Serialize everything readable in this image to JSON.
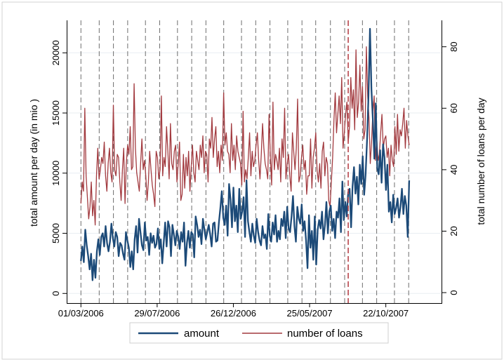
{
  "chart_data": {
    "type": "line",
    "title": "",
    "xlabel": "",
    "ylabel_left": "total amount per day (in mio  )",
    "ylabel_right": "total number of loans per day",
    "x_range": [
      "2006-02-01",
      "2008-02-10"
    ],
    "x_ticks": [
      "01/03/2006",
      "29/07/2006",
      "26/12/2006",
      "25/05/2007",
      "22/10/2007"
    ],
    "ylim_left": [
      -800,
      22700
    ],
    "yticks_left": [
      0,
      5000,
      10000,
      15000,
      20000
    ],
    "ylim_right": [
      -3.4,
      88.6
    ],
    "yticks_right": [
      0,
      20,
      40,
      60,
      80
    ],
    "grid": "horizontal",
    "legend_position": "bottom",
    "legend": [
      "amount",
      "number of loans"
    ],
    "colors": {
      "amount": "#1c4a78",
      "number of loans": "#a23a3f",
      "event_lines": "#6e6e6e",
      "highlight_line": "#b8454b",
      "grid": "#e8eef2"
    },
    "event_dates": [
      "2006-03-01",
      "2006-04-06",
      "2006-05-04",
      "2006-06-01",
      "2006-07-06",
      "2006-08-03",
      "2006-09-07",
      "2006-10-05",
      "2006-11-02",
      "2006-12-07",
      "2007-01-11",
      "2007-02-08",
      "2007-03-08",
      "2007-04-12",
      "2007-05-10",
      "2007-06-06",
      "2007-07-05",
      "2007-08-02",
      "2007-09-06",
      "2007-10-04",
      "2007-11-08",
      "2007-12-06"
    ],
    "highlight_date": "2007-08-09",
    "series": [
      {
        "name": "amount",
        "axis": "left",
        "x_start": "2006-03-01",
        "x_end": "2007-12-07",
        "values": [
          2700,
          3900,
          2600,
          5300,
          4000,
          3100,
          2000,
          3300,
          1100,
          2800,
          1300,
          3500,
          4500,
          3200,
          4700,
          5000,
          3900,
          5600,
          4200,
          3500,
          4300,
          5800,
          4600,
          3900,
          5100,
          4700,
          3100,
          4200,
          4000,
          3300,
          2800,
          5100,
          4400,
          3800,
          2200,
          3500,
          2000,
          4500,
          5600,
          3400,
          6200,
          5100,
          4000,
          3600,
          5900,
          4400,
          4700,
          3200,
          5000,
          4200,
          4800,
          3800,
          4100,
          5400,
          3700,
          4500,
          2500,
          4200,
          5900,
          3900,
          6000,
          5500,
          3100,
          5700,
          4900,
          4000,
          5200,
          4700,
          3700,
          5100,
          4300,
          5900,
          2300,
          4200,
          5200,
          3800,
          5100,
          4900,
          3000,
          6400,
          5700,
          4700,
          5300,
          4100,
          6200,
          5300,
          4500,
          5100,
          5700,
          4900,
          3900,
          5800,
          5900,
          4300,
          4400,
          5900,
          7100,
          8500,
          6300,
          5700,
          7300,
          4800,
          9100,
          7800,
          5500,
          8800,
          6000,
          7300,
          5100,
          8700,
          6200,
          6800,
          8000,
          4700,
          9400,
          6000,
          5100,
          4300,
          5800,
          4800,
          4200,
          6200,
          5100,
          4400,
          4000,
          5600,
          4600,
          4900,
          3700,
          6600,
          4800,
          4300,
          5900,
          4900,
          6500,
          4300,
          5200,
          4500,
          6200,
          5600,
          6800,
          4600,
          7200,
          5400,
          5100,
          6400,
          8100,
          5600,
          4300,
          7200,
          6200,
          5800,
          7400,
          5200,
          6000,
          4400,
          2100,
          6500,
          3800,
          5200,
          2800,
          6400,
          2400,
          5300,
          6100,
          5400,
          6800,
          4500,
          5700,
          7600,
          5000,
          6800,
          7300,
          5200,
          6200,
          4600,
          6800,
          6300,
          7900,
          5100,
          9300,
          6100,
          7600,
          6400,
          8400,
          8700,
          5500,
          8900,
          10500,
          8300,
          9700,
          7400,
          10700,
          9100,
          11400,
          8200,
          9900,
          12800,
          16500,
          22000,
          17000,
          14400,
          11200,
          15800,
          10400,
          9900,
          11900,
          9200,
          12400,
          11300,
          8600,
          10700,
          6800,
          7600,
          5900,
          8200,
          6600,
          7100,
          7900,
          6300,
          7200,
          8700,
          6600,
          8100,
          7300,
          4700,
          9400
        ]
      },
      {
        "name": "number of loans",
        "axis": "right",
        "x_start": "2006-03-01",
        "x_end": "2007-12-07",
        "values": [
          29,
          36,
          33,
          60,
          38,
          31,
          24,
          28,
          36,
          25,
          30,
          22,
          38,
          47,
          37,
          40,
          44,
          42,
          49,
          38,
          33,
          42,
          47,
          39,
          36,
          61,
          40,
          38,
          45,
          44,
          36,
          30,
          40,
          47,
          29,
          42,
          48,
          45,
          54,
          40,
          41,
          68,
          47,
          39,
          36,
          33,
          42,
          50,
          40,
          43,
          38,
          30,
          36,
          46,
          40,
          35,
          32,
          28,
          46,
          44,
          37,
          40,
          64,
          38,
          44,
          41,
          54,
          46,
          37,
          55,
          42,
          40,
          46,
          48,
          36,
          42,
          49,
          30,
          32,
          45,
          34,
          44,
          38,
          46,
          33,
          41,
          48,
          39,
          36,
          46,
          43,
          40,
          48,
          44,
          51,
          39,
          46,
          45,
          36,
          50,
          47,
          57,
          44,
          50,
          54,
          41,
          46,
          39,
          48,
          43,
          65,
          48,
          52,
          46,
          45,
          39,
          55,
          43,
          48,
          40,
          51,
          46,
          44,
          42,
          35,
          59,
          36,
          40,
          37,
          44,
          52,
          38,
          46,
          41,
          43,
          48,
          52,
          43,
          37,
          45,
          55,
          47,
          42,
          40,
          37,
          58,
          44,
          35,
          62,
          40,
          45,
          43,
          40,
          47,
          36,
          50,
          44,
          60,
          37,
          42,
          45,
          38,
          33,
          52,
          46,
          40,
          47,
          63,
          36,
          38,
          44,
          48,
          40,
          43,
          32,
          38,
          38,
          50,
          34,
          44,
          47,
          52,
          40,
          36,
          42,
          34,
          46,
          49,
          38,
          44,
          42,
          30,
          28,
          36,
          44,
          56,
          65,
          52,
          58,
          64,
          55,
          70,
          47,
          52,
          58,
          62,
          49,
          54,
          70,
          60,
          66,
          53,
          79,
          57,
          62,
          74,
          59,
          67,
          50,
          53,
          80,
          64,
          57,
          42,
          49,
          59,
          64,
          43,
          50,
          43,
          45,
          52,
          58,
          47,
          50,
          51,
          44,
          47,
          38,
          48,
          43,
          41,
          54,
          45,
          58,
          46,
          53,
          51,
          55,
          60,
          47,
          56,
          51,
          48
        ]
      }
    ]
  }
}
